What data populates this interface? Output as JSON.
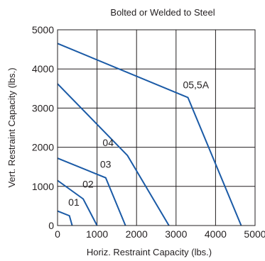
{
  "chart_data": {
    "type": "line",
    "title": "Bolted or Welded to Steel",
    "xlabel": "Horiz. Restraint Capacity (lbs.)",
    "ylabel": "Vert. Restraint Capacity (lbs.)",
    "xlim": [
      0,
      5000
    ],
    "ylim": [
      0,
      5000
    ],
    "xticks": [
      0,
      1000,
      2000,
      3000,
      4000,
      5000
    ],
    "yticks": [
      0,
      1000,
      2000,
      3000,
      4000,
      5000
    ],
    "grid": true,
    "line_color": "#1a5aa6",
    "series": [
      {
        "name": "01",
        "points": [
          [
            0,
            370
          ],
          [
            300,
            250
          ],
          [
            370,
            0
          ]
        ]
      },
      {
        "name": "02",
        "points": [
          [
            0,
            1150
          ],
          [
            650,
            680
          ],
          [
            1000,
            0
          ]
        ]
      },
      {
        "name": "03",
        "points": [
          [
            0,
            1720
          ],
          [
            1220,
            1220
          ],
          [
            1720,
            0
          ]
        ]
      },
      {
        "name": "04",
        "points": [
          [
            0,
            3620
          ],
          [
            1770,
            1790
          ],
          [
            2820,
            0
          ]
        ]
      },
      {
        "name": "05,5A",
        "points": [
          [
            0,
            4650
          ],
          [
            3300,
            3270
          ],
          [
            4650,
            0
          ]
        ]
      }
    ]
  }
}
